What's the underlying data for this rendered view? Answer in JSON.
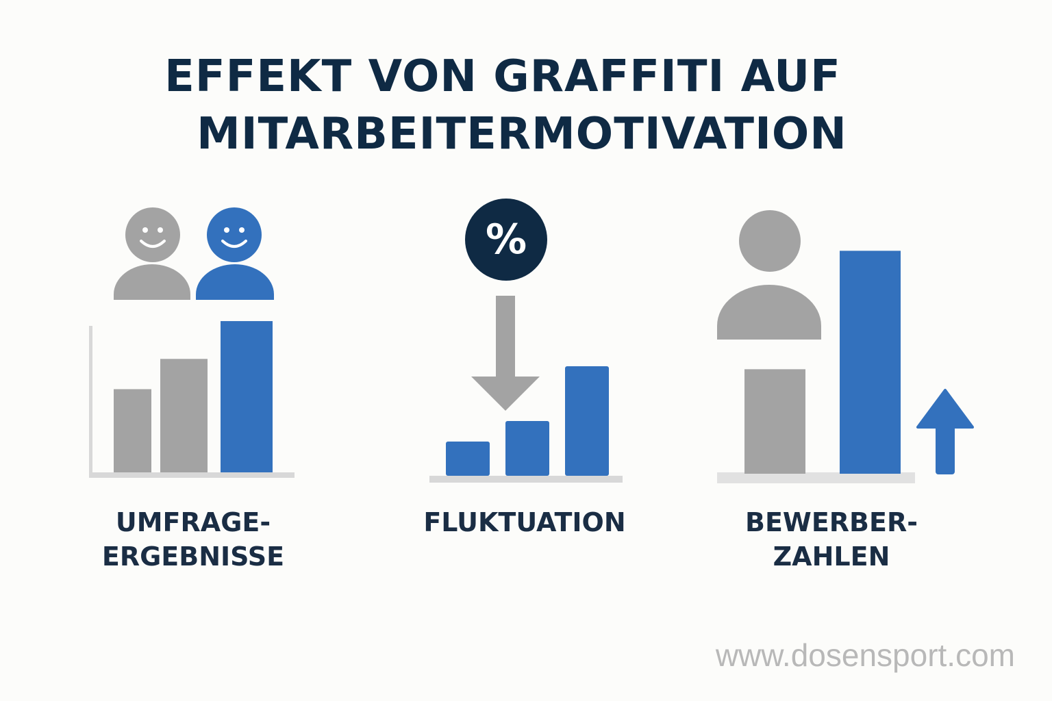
{
  "title": {
    "line1": "EFFEKT VON GRAFFITI AUF",
    "line2": "MITARBEITERMOTIVATION"
  },
  "colors": {
    "gray": "#a3a3a3",
    "blue": "#3371bd",
    "navy": "#0f2a44",
    "axis": "#d8d8d8"
  },
  "chart_data": [
    {
      "type": "bar",
      "label_lines": [
        "UMFRAGE-",
        "ERGEBNISSE"
      ],
      "icons": [
        "person-gray-smiling-icon",
        "person-blue-smiling-icon"
      ],
      "values": [
        2.2,
        3.0,
        4.0
      ],
      "bar_colors": [
        "gray",
        "gray",
        "blue"
      ],
      "ylim": [
        0,
        4.2
      ]
    },
    {
      "type": "bar",
      "label_lines": [
        "FLUKTUATION"
      ],
      "icons": [
        "percent-icon",
        "arrow-down-icon"
      ],
      "percent_symbol": "%",
      "values": [
        1.0,
        1.6,
        3.2
      ],
      "bar_colors": [
        "blue",
        "blue",
        "blue"
      ],
      "ylim": [
        0,
        3.6
      ]
    },
    {
      "type": "bar",
      "label_lines": [
        "BEWERBER-",
        "ZAHLEN"
      ],
      "icons": [
        "person-gray-icon",
        "arrow-up-icon"
      ],
      "values": [
        1.5,
        3.2
      ],
      "bar_colors": [
        "gray",
        "blue"
      ],
      "ylim": [
        0,
        3.4
      ]
    }
  ],
  "footer": {
    "url": "www.dosensport.com"
  }
}
